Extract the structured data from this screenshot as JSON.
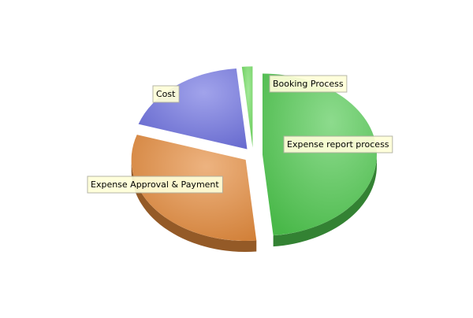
{
  "chart_data": {
    "type": "pie",
    "three_d": true,
    "exploded": true,
    "legend": "none",
    "series": [
      {
        "name": "Expense report process",
        "value": 48.5,
        "color": "#4fc84f",
        "label_text": "Expense report process"
      },
      {
        "name": "Expense Approval & Payment",
        "value": 31.5,
        "color": "#e38a3c",
        "label_text": "Expense Approval & Payment"
      },
      {
        "name": "Cost",
        "value": 18.5,
        "color": "#6f72e0",
        "label_text": "Cost"
      },
      {
        "name": "Booking Process",
        "value": 1.5,
        "color": "#6fdc5f",
        "label_text": "Booking Process"
      }
    ]
  }
}
